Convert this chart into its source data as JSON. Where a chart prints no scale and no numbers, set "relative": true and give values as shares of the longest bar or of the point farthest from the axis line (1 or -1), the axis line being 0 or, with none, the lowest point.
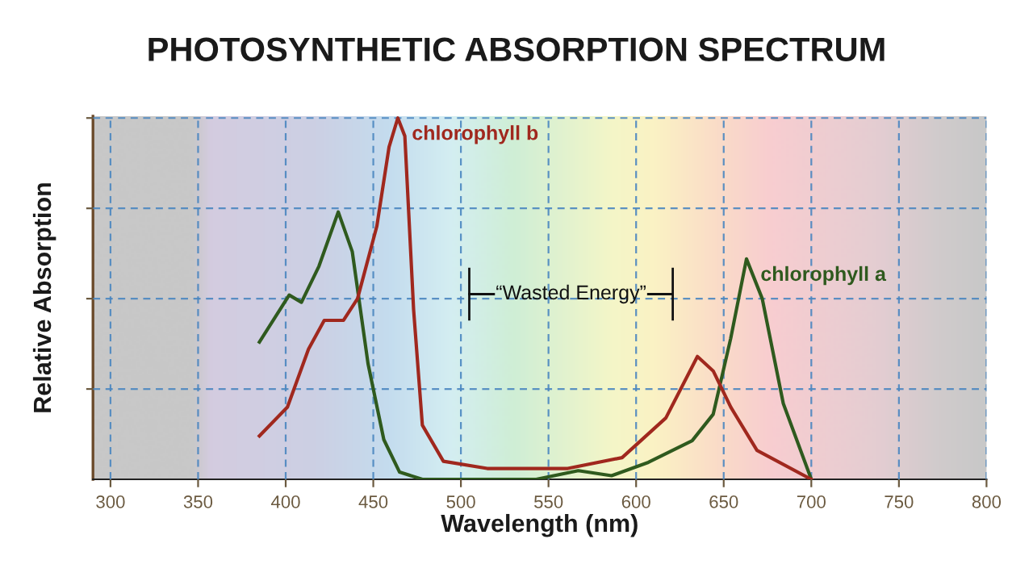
{
  "chart_data": {
    "type": "line",
    "title": "PHOTOSYNTHETIC ABSORPTION SPECTRUM",
    "xlabel": "Wavelength (nm)",
    "ylabel": "Relative Absorption",
    "relative": true,
    "xlim": [
      290,
      800
    ],
    "xticks": [
      300,
      350,
      400,
      450,
      500,
      550,
      600,
      650,
      700,
      750,
      800
    ],
    "grid": true,
    "line_style": "solid",
    "series": [
      {
        "name": "chlorophyll a",
        "color": "#2f5a1e",
        "x": [
          385,
          402,
          409,
          419,
          430,
          438,
          447,
          456,
          465,
          478,
          543,
          567,
          586,
          607,
          632,
          644,
          654,
          663,
          672,
          684,
          700
        ],
        "values": [
          0.38,
          0.51,
          0.49,
          0.59,
          0.74,
          0.63,
          0.32,
          0.11,
          0.02,
          0,
          0,
          0.024,
          0.01,
          0.047,
          0.107,
          0.18,
          0.39,
          0.61,
          0.5,
          0.21,
          0
        ]
      },
      {
        "name": "chlorophyll b",
        "color": "#a0281e",
        "x": [
          385,
          401,
          413,
          422,
          433,
          441,
          452,
          459,
          464,
          468,
          473,
          478,
          490,
          515,
          561,
          592,
          617,
          635,
          644,
          654,
          669,
          700
        ],
        "values": [
          0.12,
          0.2,
          0.36,
          0.44,
          0.44,
          0.5,
          0.7,
          0.92,
          1.0,
          0.95,
          0.47,
          0.15,
          0.05,
          0.03,
          0.03,
          0.06,
          0.17,
          0.34,
          0.3,
          0.2,
          0.08,
          0
        ]
      }
    ],
    "annotations": [
      "“Wasted Energy”"
    ]
  }
}
